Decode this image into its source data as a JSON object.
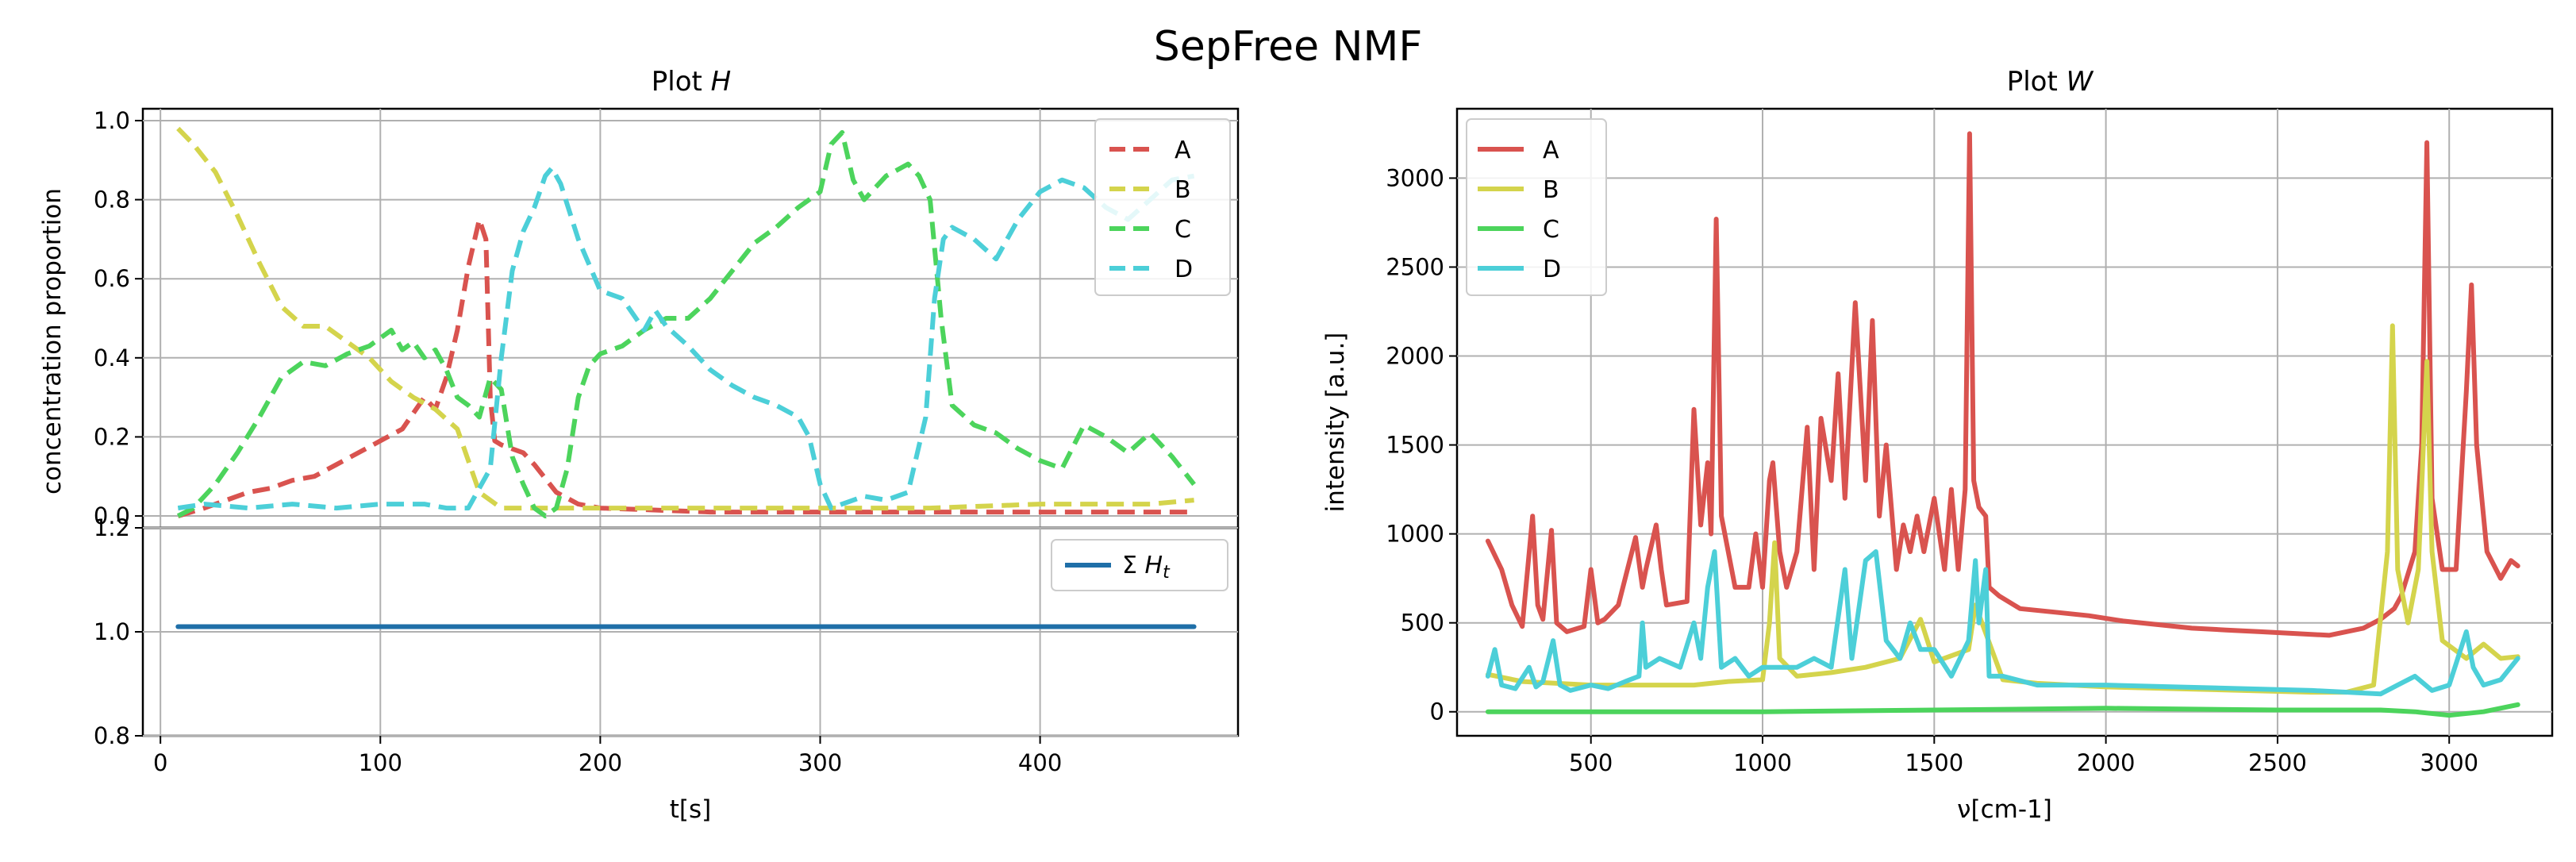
{
  "figure_title": "SepFree NMF",
  "chart_data": [
    {
      "id": "plot_h",
      "type": "line",
      "title_prefix": "Plot ",
      "title_var": "H",
      "xlabel": "t[s]",
      "ylabel": "concentration proportion",
      "xlim": [
        -8,
        490
      ],
      "ylim": [
        -0.03,
        1.03
      ],
      "xticks": [
        0,
        100,
        200,
        300,
        400
      ],
      "yticks": [
        0.0,
        0.2,
        0.4,
        0.6,
        0.8,
        1.0
      ],
      "ytick_labels": [
        "0.0",
        "0.2",
        "0.4",
        "0.6",
        "0.8",
        "1.0"
      ],
      "grid": true,
      "line_style": "dashed",
      "legend_position": "top-right",
      "series": [
        {
          "name": "A",
          "color": "#d9534f",
          "x": [
            8,
            20,
            30,
            40,
            50,
            60,
            70,
            80,
            90,
            100,
            110,
            120,
            125,
            130,
            135,
            140,
            145,
            148,
            150,
            152,
            155,
            160,
            165,
            170,
            180,
            190,
            200,
            250,
            300,
            350,
            400,
            450,
            470
          ],
          "y": [
            0.0,
            0.02,
            0.04,
            0.06,
            0.07,
            0.09,
            0.1,
            0.13,
            0.16,
            0.19,
            0.22,
            0.3,
            0.27,
            0.35,
            0.47,
            0.63,
            0.75,
            0.7,
            0.3,
            0.19,
            0.18,
            0.17,
            0.16,
            0.13,
            0.06,
            0.03,
            0.02,
            0.01,
            0.01,
            0.01,
            0.01,
            0.01,
            0.01
          ]
        },
        {
          "name": "B",
          "color": "#d4d44c",
          "x": [
            8,
            15,
            25,
            35,
            45,
            55,
            65,
            75,
            85,
            95,
            105,
            115,
            125,
            135,
            145,
            155,
            165,
            175,
            190,
            200,
            250,
            300,
            350,
            400,
            450,
            470
          ],
          "y": [
            0.98,
            0.94,
            0.87,
            0.76,
            0.64,
            0.53,
            0.48,
            0.48,
            0.44,
            0.4,
            0.34,
            0.3,
            0.27,
            0.22,
            0.06,
            0.02,
            0.02,
            0.02,
            0.02,
            0.02,
            0.02,
            0.02,
            0.02,
            0.03,
            0.03,
            0.04
          ]
        },
        {
          "name": "C",
          "color": "#4cd45c",
          "x": [
            8,
            15,
            25,
            35,
            45,
            55,
            65,
            75,
            85,
            95,
            105,
            110,
            115,
            120,
            125,
            130,
            135,
            140,
            145,
            150,
            155,
            160,
            165,
            170,
            175,
            180,
            185,
            190,
            195,
            200,
            210,
            220,
            230,
            240,
            250,
            260,
            270,
            280,
            290,
            300,
            305,
            310,
            315,
            320,
            330,
            340,
            345,
            350,
            355,
            360,
            370,
            380,
            390,
            400,
            410,
            420,
            430,
            440,
            450,
            460,
            470
          ],
          "y": [
            0.0,
            0.02,
            0.08,
            0.16,
            0.25,
            0.35,
            0.39,
            0.38,
            0.41,
            0.43,
            0.47,
            0.42,
            0.44,
            0.4,
            0.42,
            0.37,
            0.3,
            0.28,
            0.25,
            0.35,
            0.32,
            0.15,
            0.08,
            0.02,
            0.0,
            0.02,
            0.12,
            0.3,
            0.38,
            0.41,
            0.43,
            0.47,
            0.5,
            0.5,
            0.55,
            0.62,
            0.69,
            0.73,
            0.78,
            0.82,
            0.94,
            0.97,
            0.85,
            0.8,
            0.86,
            0.89,
            0.86,
            0.8,
            0.5,
            0.28,
            0.23,
            0.21,
            0.17,
            0.14,
            0.12,
            0.23,
            0.2,
            0.16,
            0.21,
            0.15,
            0.08
          ]
        },
        {
          "name": "D",
          "color": "#4ccfd8",
          "x": [
            8,
            20,
            40,
            60,
            80,
            100,
            120,
            130,
            140,
            150,
            155,
            160,
            165,
            170,
            175,
            178,
            182,
            190,
            200,
            210,
            220,
            225,
            230,
            240,
            250,
            260,
            270,
            280,
            290,
            295,
            300,
            305,
            310,
            320,
            330,
            340,
            348,
            352,
            356,
            360,
            370,
            380,
            390,
            400,
            410,
            420,
            430,
            440,
            450,
            460,
            470
          ],
          "y": [
            0.02,
            0.03,
            0.02,
            0.03,
            0.02,
            0.03,
            0.03,
            0.02,
            0.02,
            0.12,
            0.4,
            0.62,
            0.72,
            0.78,
            0.86,
            0.88,
            0.84,
            0.7,
            0.57,
            0.55,
            0.47,
            0.52,
            0.48,
            0.43,
            0.37,
            0.33,
            0.3,
            0.28,
            0.25,
            0.2,
            0.08,
            0.02,
            0.03,
            0.05,
            0.04,
            0.06,
            0.25,
            0.55,
            0.7,
            0.73,
            0.7,
            0.65,
            0.75,
            0.82,
            0.85,
            0.83,
            0.78,
            0.75,
            0.8,
            0.85,
            0.86
          ]
        }
      ]
    },
    {
      "id": "plot_h_sum",
      "type": "line",
      "xlabel": "t[s]",
      "xlim": [
        -8,
        490
      ],
      "ylim": [
        0.8,
        1.2
      ],
      "xticks": [
        0,
        100,
        200,
        300,
        400
      ],
      "yticks": [
        0.8,
        1.0,
        1.2
      ],
      "ytick_labels": [
        "0.8",
        "1.0",
        "1.2"
      ],
      "grid": true,
      "legend_position": "top-right",
      "legend_sigma": "Σ ",
      "legend_var": "H",
      "legend_sub": "t",
      "series": [
        {
          "name": "Σ H_t",
          "color": "#1f6fa8",
          "x": [
            8,
            470
          ],
          "y": [
            1.01,
            1.01
          ]
        }
      ]
    },
    {
      "id": "plot_w",
      "type": "line",
      "title_prefix": "Plot ",
      "title_var": "W",
      "xlabel": "ν[cm-1]",
      "ylabel": "intensity [a.u.]",
      "xlim": [
        110,
        3300
      ],
      "ylim": [
        -135,
        3390
      ],
      "xticks": [
        500,
        1000,
        1500,
        2000,
        2500,
        3000
      ],
      "yticks": [
        0,
        500,
        1000,
        1500,
        2000,
        2500,
        3000
      ],
      "grid": true,
      "line_style": "solid",
      "legend_position": "top-left",
      "series": [
        {
          "name": "A",
          "color": "#d9534f",
          "x": [
            200,
            240,
            270,
            300,
            330,
            345,
            360,
            385,
            400,
            430,
            480,
            500,
            520,
            540,
            580,
            630,
            650,
            660,
            690,
            705,
            720,
            780,
            800,
            820,
            840,
            850,
            865,
            880,
            920,
            960,
            980,
            1000,
            1020,
            1030,
            1050,
            1070,
            1100,
            1130,
            1150,
            1170,
            1200,
            1220,
            1240,
            1270,
            1300,
            1320,
            1340,
            1360,
            1390,
            1410,
            1430,
            1450,
            1470,
            1500,
            1530,
            1550,
            1570,
            1590,
            1603,
            1615,
            1630,
            1650,
            1660,
            1690,
            1750,
            1850,
            1950,
            2050,
            2150,
            2250,
            2350,
            2450,
            2550,
            2650,
            2750,
            2800,
            2840,
            2860,
            2900,
            2920,
            2935,
            2950,
            2980,
            3020,
            3050,
            3065,
            3080,
            3110,
            3150,
            3180,
            3200
          ],
          "y": [
            960,
            800,
            600,
            480,
            1100,
            600,
            520,
            1020,
            500,
            450,
            480,
            800,
            500,
            520,
            600,
            980,
            700,
            800,
            1050,
            800,
            600,
            620,
            1700,
            1050,
            1400,
            1000,
            2770,
            1100,
            700,
            700,
            1000,
            700,
            1300,
            1400,
            900,
            700,
            900,
            1600,
            800,
            1650,
            1300,
            1900,
            1200,
            2300,
            1300,
            2200,
            1100,
            1500,
            800,
            1050,
            900,
            1100,
            900,
            1200,
            800,
            1250,
            800,
            1250,
            3250,
            1300,
            1150,
            1100,
            700,
            650,
            580,
            560,
            540,
            510,
            490,
            470,
            460,
            450,
            440,
            430,
            470,
            520,
            580,
            650,
            900,
            1500,
            3200,
            1200,
            800,
            800,
            1800,
            2400,
            1500,
            900,
            750,
            850,
            820
          ]
        },
        {
          "name": "B",
          "color": "#d4d44c",
          "x": [
            200,
            300,
            400,
            500,
            600,
            700,
            800,
            900,
            1000,
            1020,
            1035,
            1050,
            1100,
            1200,
            1300,
            1400,
            1460,
            1480,
            1500,
            1600,
            1620,
            1700,
            1800,
            2000,
            2200,
            2400,
            2600,
            2700,
            2780,
            2820,
            2835,
            2850,
            2880,
            2910,
            2935,
            2950,
            2980,
            3050,
            3100,
            3150,
            3200
          ],
          "y": [
            210,
            170,
            160,
            150,
            150,
            150,
            150,
            170,
            180,
            500,
            950,
            300,
            200,
            220,
            250,
            300,
            520,
            400,
            280,
            350,
            600,
            180,
            160,
            140,
            130,
            120,
            110,
            110,
            150,
            900,
            2170,
            800,
            500,
            800,
            1970,
            900,
            400,
            300,
            380,
            300,
            310
          ]
        },
        {
          "name": "C",
          "color": "#4cd45c",
          "x": [
            200,
            500,
            1000,
            1500,
            2000,
            2500,
            2800,
            2900,
            3000,
            3100,
            3200
          ],
          "y": [
            0,
            0,
            0,
            10,
            20,
            10,
            10,
            0,
            -20,
            0,
            40
          ]
        },
        {
          "name": "D",
          "color": "#4ccfd8",
          "x": [
            200,
            220,
            240,
            280,
            320,
            340,
            360,
            390,
            410,
            440,
            500,
            550,
            600,
            640,
            650,
            660,
            700,
            760,
            800,
            820,
            840,
            860,
            880,
            920,
            960,
            1000,
            1050,
            1100,
            1150,
            1200,
            1240,
            1260,
            1300,
            1330,
            1360,
            1400,
            1430,
            1460,
            1500,
            1550,
            1600,
            1620,
            1630,
            1650,
            1660,
            1700,
            1800,
            2000,
            2200,
            2400,
            2600,
            2800,
            2850,
            2900,
            2950,
            3000,
            3050,
            3070,
            3100,
            3150,
            3200
          ],
          "y": [
            200,
            350,
            150,
            130,
            250,
            140,
            170,
            400,
            150,
            120,
            150,
            130,
            170,
            200,
            500,
            250,
            300,
            250,
            500,
            300,
            700,
            900,
            250,
            300,
            200,
            250,
            250,
            250,
            300,
            250,
            800,
            300,
            850,
            900,
            400,
            300,
            500,
            350,
            350,
            200,
            400,
            850,
            500,
            800,
            200,
            200,
            150,
            150,
            140,
            130,
            120,
            100,
            150,
            200,
            120,
            150,
            450,
            250,
            150,
            180,
            300
          ]
        }
      ]
    }
  ]
}
